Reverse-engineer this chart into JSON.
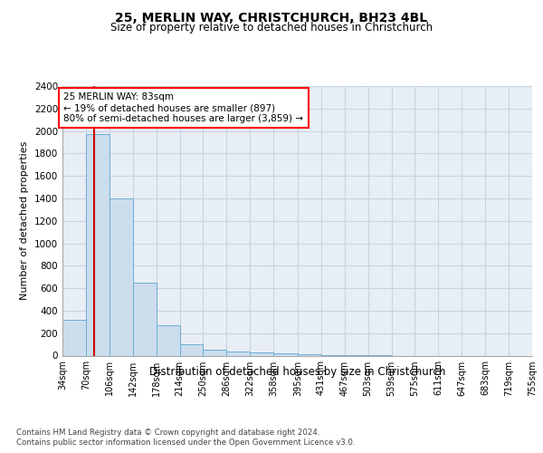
{
  "title1": "25, MERLIN WAY, CHRISTCHURCH, BH23 4BL",
  "title2": "Size of property relative to detached houses in Christchurch",
  "xlabel": "Distribution of detached houses by size in Christchurch",
  "ylabel": "Number of detached properties",
  "footnote1": "Contains HM Land Registry data © Crown copyright and database right 2024.",
  "footnote2": "Contains public sector information licensed under the Open Government Licence v3.0.",
  "annotation_line1": "25 MERLIN WAY: 83sqm",
  "annotation_line2": "← 19% of detached houses are smaller (897)",
  "annotation_line3": "80% of semi-detached houses are larger (3,859) →",
  "property_size": 83,
  "bar_edges": [
    34,
    70,
    106,
    142,
    178,
    214,
    250,
    286,
    322,
    358,
    395,
    431,
    467,
    503,
    539,
    575,
    611,
    647,
    683,
    719,
    755
  ],
  "bar_heights": [
    320,
    1975,
    1400,
    650,
    270,
    100,
    50,
    35,
    25,
    20,
    15,
    4,
    2,
    1,
    0,
    0,
    0,
    0,
    0,
    0
  ],
  "bar_color": "#ccdded",
  "bar_edge_color": "#6aaed6",
  "marker_color": "#cc0000",
  "grid_color": "#c8d4e0",
  "bg_color": "#e8eef5",
  "ylim": [
    0,
    2400
  ],
  "yticks": [
    0,
    200,
    400,
    600,
    800,
    1000,
    1200,
    1400,
    1600,
    1800,
    2000,
    2200,
    2400
  ]
}
